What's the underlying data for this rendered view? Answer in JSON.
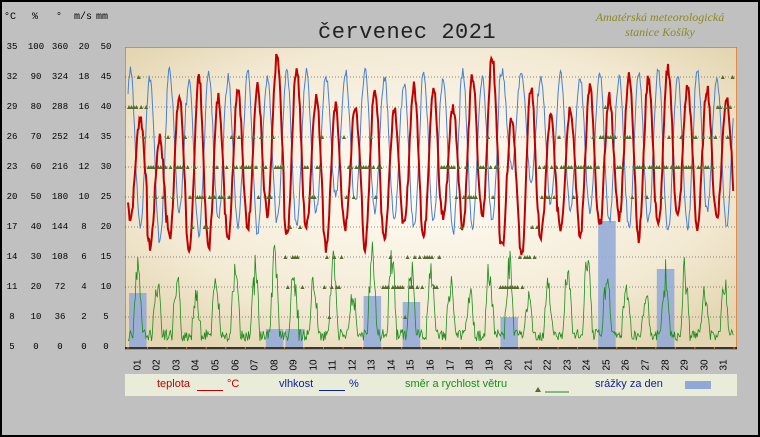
{
  "chart_data": {
    "type": "line",
    "title": "červenec 2021",
    "station": [
      "Amatérská meteorologická",
      "stanice Košíky"
    ],
    "axis_headers": [
      "°C",
      "%",
      "°",
      "m/s",
      "mm"
    ],
    "axis_ticks": {
      "temperature_c": [
        35,
        32,
        29,
        26,
        23,
        20,
        17,
        14,
        11,
        8,
        5
      ],
      "humidity_pct": [
        100,
        90,
        80,
        70,
        60,
        50,
        40,
        30,
        20,
        10,
        0
      ],
      "wind_dir_deg": [
        360,
        324,
        288,
        252,
        216,
        180,
        144,
        108,
        72,
        36,
        0
      ],
      "wind_speed_ms": [
        20,
        18,
        16,
        14,
        12,
        10,
        8,
        6,
        4,
        2,
        0
      ],
      "precip_mm": [
        50,
        45,
        40,
        35,
        30,
        25,
        20,
        15,
        10,
        5,
        0
      ]
    },
    "x_labels": [
      "01",
      "02",
      "03",
      "04",
      "05",
      "06",
      "07",
      "08",
      "09",
      "10",
      "11",
      "12",
      "13",
      "14",
      "15",
      "16",
      "17",
      "18",
      "19",
      "20",
      "21",
      "22",
      "23",
      "24",
      "25",
      "26",
      "27",
      "28",
      "29",
      "30",
      "31"
    ],
    "grid": true,
    "series": [
      {
        "name": "teplota",
        "unit": "°C",
        "color": "#c00000",
        "daily_min": [
          18,
          15,
          16,
          14,
          15,
          16,
          17,
          18,
          16,
          17,
          15,
          17,
          15,
          16,
          17,
          16,
          18,
          17,
          18,
          15,
          14,
          16,
          17,
          16,
          17,
          18,
          16,
          17,
          18,
          17,
          18
        ],
        "daily_max": [
          28,
          26,
          30,
          32,
          30,
          31,
          31,
          34,
          33,
          30,
          29,
          29,
          31,
          29,
          31,
          31,
          29,
          32,
          34,
          28,
          31,
          28,
          29,
          31,
          30,
          32,
          32,
          33,
          31,
          31,
          30
        ]
      },
      {
        "name": "vlhkost",
        "unit": "%",
        "color": "#4a7fd0",
        "daily_min": [
          40,
          35,
          45,
          38,
          42,
          40,
          38,
          42,
          40,
          45,
          50,
          48,
          45,
          42,
          40,
          42,
          38,
          40,
          42,
          60,
          55,
          48,
          45,
          45,
          42,
          40,
          42,
          38,
          40,
          45,
          40
        ],
        "daily_max": [
          92,
          90,
          92,
          88,
          92,
          90,
          92,
          90,
          92,
          92,
          90,
          92,
          92,
          90,
          88,
          92,
          90,
          92,
          90,
          92,
          92,
          90,
          92,
          90,
          92,
          90,
          92,
          92,
          90,
          92,
          90
        ]
      },
      {
        "name": "směr a rychlost větru",
        "color": "#1c8c1c",
        "daily_max_speed_ms": [
          6,
          5,
          5,
          4,
          5,
          7,
          6,
          7,
          6,
          5,
          7,
          4,
          8,
          7,
          6,
          6,
          5,
          4,
          6,
          7,
          4,
          5,
          6,
          7,
          6,
          5,
          4,
          6,
          6,
          4,
          5
        ],
        "direction_markers_deg": [
          288,
          216,
          216,
          180,
          180,
          216,
          216,
          216,
          108,
          216,
          72,
          216,
          216,
          72,
          72,
          108,
          216,
          180,
          216,
          72,
          108,
          216,
          216,
          216,
          252,
          216,
          216,
          216,
          216,
          216,
          288
        ]
      },
      {
        "name": "srážky za den",
        "unit": "mm",
        "color": "#8fa8d8",
        "values": [
          9,
          0,
          0,
          0,
          0,
          0,
          0,
          3,
          3,
          0,
          0,
          0,
          8.5,
          0,
          7.5,
          0,
          0,
          0,
          0,
          5,
          0,
          0,
          0,
          0,
          21,
          0,
          0,
          13,
          0,
          0,
          0
        ]
      }
    ]
  },
  "legend": {
    "temp_label": "teplota",
    "temp_unit": "°C",
    "hum_label": "vlhkost",
    "hum_unit": "%",
    "wind_label": "směr a rychlost větru",
    "rain_label": "srážky za den"
  }
}
